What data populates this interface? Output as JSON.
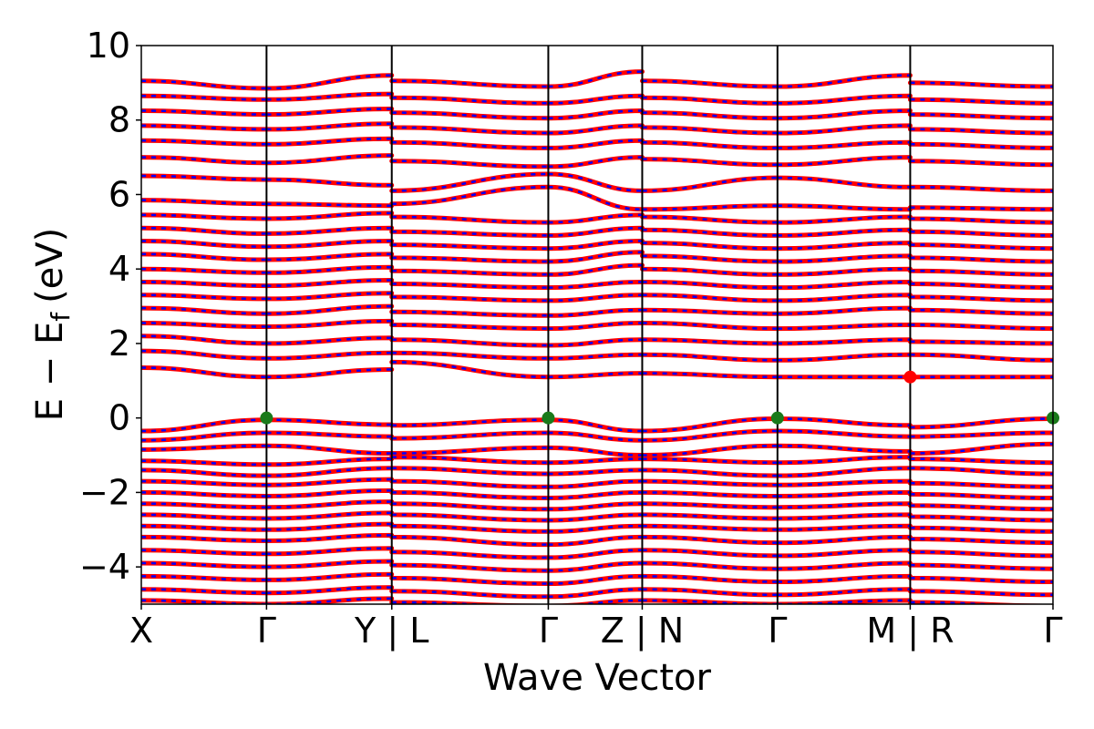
{
  "chart_data": {
    "type": "line",
    "title": "",
    "xlabel": "Wave Vector",
    "ylabel": "E − E_f (eV)",
    "ylabel_main": "E − E",
    "ylabel_sub": "f",
    "ylabel_unit": "(eV)",
    "ylim": [
      -5,
      10
    ],
    "yticks": [
      -4,
      -2,
      0,
      2,
      4,
      6,
      8,
      10
    ],
    "ytick_labels": [
      "−4",
      "−2",
      "0",
      "2",
      "4",
      "6",
      "8",
      "10"
    ],
    "grid": false,
    "kpoints": [
      {
        "label": "X",
        "pos": 0.0
      },
      {
        "label": "Γ",
        "pos": 1.0
      },
      {
        "label": "Y | L",
        "pos": 2.0
      },
      {
        "label": "Γ",
        "pos": 3.25
      },
      {
        "label": "Z | N",
        "pos": 4.0
      },
      {
        "label": "Γ",
        "pos": 5.08
      },
      {
        "label": "M | R",
        "pos": 6.14
      },
      {
        "label": "Γ",
        "pos": 7.28
      }
    ],
    "segments": [
      [
        0.0,
        1.0
      ],
      [
        1.0,
        2.0
      ],
      [
        2.0,
        3.25
      ],
      [
        3.25,
        4.0
      ],
      [
        4.0,
        5.08
      ],
      [
        5.08,
        6.14
      ],
      [
        6.14,
        7.28
      ]
    ],
    "valence_band_maximum": {
      "energy": 0.0,
      "color": "#1a7a1a",
      "kpos": [
        1.0,
        3.25,
        5.08,
        7.28
      ]
    },
    "conduction_band_minimum": {
      "energy": 1.1,
      "color": "#ff0000",
      "kpos": [
        6.14
      ]
    },
    "series": [
      {
        "color": "#ff0000",
        "style": "solid"
      },
      {
        "color": "#0000ff",
        "style": "dashed"
      }
    ],
    "bands": [
      {
        "segment_endpoints": [
          [
            -0.35,
            -0.05
          ],
          [
            -0.05,
            -0.18
          ],
          [
            -0.2,
            -0.05
          ],
          [
            -0.05,
            -0.35
          ],
          [
            -0.35,
            -0.02
          ],
          [
            -0.02,
            -0.2
          ],
          [
            -0.25,
            -0.02
          ]
        ]
      },
      {
        "segment_endpoints": [
          [
            -0.6,
            -0.4
          ],
          [
            -0.4,
            -0.5
          ],
          [
            -0.55,
            -0.4
          ],
          [
            -0.4,
            -0.6
          ],
          [
            -0.6,
            -0.35
          ],
          [
            -0.35,
            -0.5
          ],
          [
            -0.5,
            -0.4
          ]
        ]
      },
      {
        "segment_endpoints": [
          [
            -0.85,
            -0.75
          ],
          [
            -0.75,
            -0.95
          ],
          [
            -0.95,
            -0.8
          ],
          [
            -0.8,
            -1.0
          ],
          [
            -1.0,
            -0.75
          ],
          [
            -0.75,
            -0.9
          ],
          [
            -0.95,
            -0.7
          ]
        ]
      },
      {
        "segment_endpoints": [
          [
            -1.15,
            -1.25
          ],
          [
            -1.25,
            -1.1
          ],
          [
            -1.05,
            -1.2
          ],
          [
            -1.2,
            -1.1
          ],
          [
            -1.1,
            -1.2
          ],
          [
            -1.2,
            -1.05
          ],
          [
            -1.1,
            -1.2
          ]
        ]
      },
      {
        "segment_endpoints": [
          [
            -1.4,
            -1.55
          ],
          [
            -1.55,
            -1.35
          ],
          [
            -1.35,
            -1.5
          ],
          [
            -1.5,
            -1.4
          ],
          [
            -1.4,
            -1.55
          ],
          [
            -1.55,
            -1.35
          ],
          [
            -1.35,
            -1.5
          ]
        ]
      },
      {
        "segment_endpoints": [
          [
            -1.7,
            -1.8
          ],
          [
            -1.8,
            -1.65
          ],
          [
            -1.7,
            -1.85
          ],
          [
            -1.85,
            -1.7
          ],
          [
            -1.7,
            -1.8
          ],
          [
            -1.8,
            -1.7
          ],
          [
            -1.75,
            -1.85
          ]
        ]
      },
      {
        "segment_endpoints": [
          [
            -2.0,
            -2.1
          ],
          [
            -2.1,
            -1.95
          ],
          [
            -2.0,
            -2.15
          ],
          [
            -2.15,
            -2.0
          ],
          [
            -2.0,
            -2.1
          ],
          [
            -2.1,
            -2.0
          ],
          [
            -2.05,
            -2.15
          ]
        ]
      },
      {
        "segment_endpoints": [
          [
            -2.3,
            -2.4
          ],
          [
            -2.4,
            -2.25
          ],
          [
            -2.3,
            -2.45
          ],
          [
            -2.45,
            -2.3
          ],
          [
            -2.3,
            -2.4
          ],
          [
            -2.4,
            -2.3
          ],
          [
            -2.35,
            -2.45
          ]
        ]
      },
      {
        "segment_endpoints": [
          [
            -2.6,
            -2.7
          ],
          [
            -2.7,
            -2.55
          ],
          [
            -2.6,
            -2.75
          ],
          [
            -2.75,
            -2.6
          ],
          [
            -2.6,
            -2.7
          ],
          [
            -2.7,
            -2.6
          ],
          [
            -2.65,
            -2.75
          ]
        ]
      },
      {
        "segment_endpoints": [
          [
            -2.9,
            -3.0
          ],
          [
            -3.0,
            -2.85
          ],
          [
            -2.9,
            -3.05
          ],
          [
            -3.05,
            -2.9
          ],
          [
            -2.9,
            -3.0
          ],
          [
            -3.0,
            -2.9
          ],
          [
            -2.95,
            -3.05
          ]
        ]
      },
      {
        "segment_endpoints": [
          [
            -3.2,
            -3.3
          ],
          [
            -3.3,
            -3.15
          ],
          [
            -3.2,
            -3.4
          ],
          [
            -3.4,
            -3.2
          ],
          [
            -3.2,
            -3.35
          ],
          [
            -3.35,
            -3.2
          ],
          [
            -3.25,
            -3.35
          ]
        ]
      },
      {
        "segment_endpoints": [
          [
            -3.55,
            -3.65
          ],
          [
            -3.65,
            -3.5
          ],
          [
            -3.6,
            -3.75
          ],
          [
            -3.75,
            -3.55
          ],
          [
            -3.55,
            -3.7
          ],
          [
            -3.7,
            -3.55
          ],
          [
            -3.6,
            -3.7
          ]
        ]
      },
      {
        "segment_endpoints": [
          [
            -3.9,
            -4.0
          ],
          [
            -4.0,
            -3.85
          ],
          [
            -3.95,
            -4.1
          ],
          [
            -4.1,
            -3.9
          ],
          [
            -3.9,
            -4.05
          ],
          [
            -4.05,
            -3.9
          ],
          [
            -3.95,
            -4.05
          ]
        ]
      },
      {
        "segment_endpoints": [
          [
            -4.25,
            -4.35
          ],
          [
            -4.35,
            -4.2
          ],
          [
            -4.3,
            -4.45
          ],
          [
            -4.45,
            -4.25
          ],
          [
            -4.25,
            -4.4
          ],
          [
            -4.4,
            -4.25
          ],
          [
            -4.3,
            -4.4
          ]
        ]
      },
      {
        "segment_endpoints": [
          [
            -4.6,
            -4.7
          ],
          [
            -4.7,
            -4.55
          ],
          [
            -4.65,
            -4.8
          ],
          [
            -4.8,
            -4.6
          ],
          [
            -4.6,
            -4.75
          ],
          [
            -4.75,
            -4.6
          ],
          [
            -4.65,
            -4.75
          ]
        ]
      },
      {
        "segment_endpoints": [
          [
            -4.9,
            -5.0
          ],
          [
            -5.0,
            -4.85
          ],
          [
            -4.95,
            -5.05
          ],
          [
            -5.05,
            -4.9
          ],
          [
            -4.9,
            -5.0
          ],
          [
            -5.0,
            -4.9
          ],
          [
            -4.95,
            -5.05
          ]
        ]
      },
      {
        "segment_endpoints": [
          [
            1.35,
            1.1
          ],
          [
            1.1,
            1.3
          ],
          [
            1.5,
            1.1
          ],
          [
            1.1,
            1.2
          ],
          [
            1.2,
            1.1
          ],
          [
            1.1,
            1.1
          ],
          [
            1.1,
            1.1
          ]
        ]
      },
      {
        "segment_endpoints": [
          [
            1.8,
            1.6
          ],
          [
            1.6,
            1.75
          ],
          [
            1.75,
            1.6
          ],
          [
            1.6,
            1.7
          ],
          [
            1.7,
            1.55
          ],
          [
            1.55,
            1.7
          ],
          [
            1.7,
            1.55
          ]
        ]
      },
      {
        "segment_endpoints": [
          [
            2.2,
            2.0
          ],
          [
            2.0,
            2.15
          ],
          [
            2.1,
            1.95
          ],
          [
            1.95,
            2.1
          ],
          [
            2.1,
            2.0
          ],
          [
            2.0,
            2.1
          ],
          [
            2.05,
            2.0
          ]
        ]
      },
      {
        "segment_endpoints": [
          [
            2.55,
            2.45
          ],
          [
            2.45,
            2.6
          ],
          [
            2.5,
            2.4
          ],
          [
            2.4,
            2.55
          ],
          [
            2.55,
            2.4
          ],
          [
            2.4,
            2.5
          ],
          [
            2.5,
            2.4
          ]
        ]
      },
      {
        "segment_endpoints": [
          [
            2.95,
            2.8
          ],
          [
            2.8,
            3.0
          ],
          [
            2.85,
            2.75
          ],
          [
            2.75,
            2.9
          ],
          [
            2.9,
            2.8
          ],
          [
            2.8,
            2.95
          ],
          [
            2.9,
            2.8
          ]
        ]
      },
      {
        "segment_endpoints": [
          [
            3.3,
            3.2
          ],
          [
            3.2,
            3.35
          ],
          [
            3.25,
            3.15
          ],
          [
            3.15,
            3.3
          ],
          [
            3.3,
            3.15
          ],
          [
            3.15,
            3.3
          ],
          [
            3.25,
            3.15
          ]
        ]
      },
      {
        "segment_endpoints": [
          [
            3.65,
            3.55
          ],
          [
            3.55,
            3.7
          ],
          [
            3.6,
            3.5
          ],
          [
            3.5,
            3.65
          ],
          [
            3.65,
            3.5
          ],
          [
            3.5,
            3.65
          ],
          [
            3.6,
            3.5
          ]
        ]
      },
      {
        "segment_endpoints": [
          [
            4.0,
            3.9
          ],
          [
            3.9,
            4.05
          ],
          [
            3.95,
            3.85
          ],
          [
            3.85,
            4.1
          ],
          [
            4.0,
            3.85
          ],
          [
            3.85,
            4.0
          ],
          [
            3.95,
            3.85
          ]
        ]
      },
      {
        "segment_endpoints": [
          [
            4.4,
            4.25
          ],
          [
            4.25,
            4.4
          ],
          [
            4.3,
            4.2
          ],
          [
            4.2,
            4.45
          ],
          [
            4.35,
            4.2
          ],
          [
            4.2,
            4.35
          ],
          [
            4.3,
            4.2
          ]
        ]
      },
      {
        "segment_endpoints": [
          [
            4.75,
            4.6
          ],
          [
            4.6,
            4.75
          ],
          [
            4.65,
            4.55
          ],
          [
            4.55,
            4.75
          ],
          [
            4.7,
            4.55
          ],
          [
            4.55,
            4.7
          ],
          [
            4.65,
            4.55
          ]
        ]
      },
      {
        "segment_endpoints": [
          [
            5.1,
            4.95
          ],
          [
            4.95,
            5.1
          ],
          [
            5.0,
            4.9
          ],
          [
            4.9,
            5.1
          ],
          [
            5.05,
            4.9
          ],
          [
            4.9,
            5.05
          ],
          [
            5.0,
            4.9
          ]
        ]
      },
      {
        "segment_endpoints": [
          [
            5.45,
            5.35
          ],
          [
            5.35,
            5.5
          ],
          [
            5.4,
            5.25
          ],
          [
            5.25,
            5.45
          ],
          [
            5.4,
            5.25
          ],
          [
            5.25,
            5.4
          ],
          [
            5.35,
            5.25
          ]
        ]
      },
      {
        "segment_endpoints": [
          [
            5.85,
            5.75
          ],
          [
            5.75,
            5.7
          ],
          [
            5.75,
            6.2
          ],
          [
            6.2,
            5.6
          ],
          [
            5.6,
            5.7
          ],
          [
            5.7,
            5.6
          ],
          [
            5.65,
            5.6
          ]
        ]
      },
      {
        "segment_endpoints": [
          [
            6.5,
            6.4
          ],
          [
            6.4,
            6.25
          ],
          [
            6.1,
            6.55
          ],
          [
            6.55,
            6.1
          ],
          [
            6.1,
            6.45
          ],
          [
            6.45,
            6.2
          ],
          [
            6.2,
            6.1
          ]
        ]
      },
      {
        "segment_endpoints": [
          [
            7.0,
            6.85
          ],
          [
            6.85,
            7.05
          ],
          [
            6.9,
            6.75
          ],
          [
            6.75,
            7.0
          ],
          [
            6.95,
            6.8
          ],
          [
            6.8,
            7.0
          ],
          [
            6.9,
            6.8
          ]
        ]
      },
      {
        "segment_endpoints": [
          [
            7.45,
            7.35
          ],
          [
            7.35,
            7.5
          ],
          [
            7.4,
            7.25
          ],
          [
            7.25,
            7.45
          ],
          [
            7.4,
            7.25
          ],
          [
            7.25,
            7.4
          ],
          [
            7.35,
            7.25
          ]
        ]
      },
      {
        "segment_endpoints": [
          [
            7.85,
            7.75
          ],
          [
            7.75,
            7.9
          ],
          [
            7.8,
            7.65
          ],
          [
            7.65,
            7.85
          ],
          [
            7.8,
            7.65
          ],
          [
            7.65,
            7.85
          ],
          [
            7.75,
            7.65
          ]
        ]
      },
      {
        "segment_endpoints": [
          [
            8.25,
            8.15
          ],
          [
            8.15,
            8.3
          ],
          [
            8.2,
            8.05
          ],
          [
            8.05,
            8.25
          ],
          [
            8.2,
            8.05
          ],
          [
            8.05,
            8.25
          ],
          [
            8.15,
            8.05
          ]
        ]
      },
      {
        "segment_endpoints": [
          [
            8.65,
            8.55
          ],
          [
            8.55,
            8.7
          ],
          [
            8.6,
            8.45
          ],
          [
            8.45,
            8.65
          ],
          [
            8.6,
            8.45
          ],
          [
            8.45,
            8.65
          ],
          [
            8.55,
            8.45
          ]
        ]
      },
      {
        "segment_endpoints": [
          [
            9.05,
            8.85
          ],
          [
            8.85,
            9.2
          ],
          [
            9.05,
            8.9
          ],
          [
            8.9,
            9.3
          ],
          [
            9.05,
            8.9
          ],
          [
            8.9,
            9.2
          ],
          [
            9.0,
            8.9
          ]
        ]
      }
    ]
  }
}
